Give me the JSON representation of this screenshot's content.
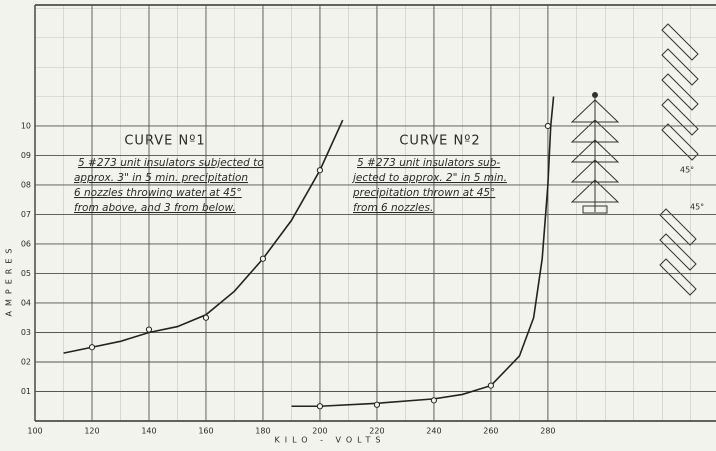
{
  "chart_data": {
    "type": "line",
    "x_label": "KILO - VOLTS",
    "y_label": "AMPERES",
    "xlim": [
      100,
      339
    ],
    "ylim": [
      0,
      1.41
    ],
    "xticks": [
      100,
      120,
      140,
      160,
      180,
      200,
      220,
      240,
      260,
      280
    ],
    "yticks": [
      {
        "value": 0.1,
        "label": "01"
      },
      {
        "value": 0.2,
        "label": "02"
      },
      {
        "value": 0.3,
        "label": "03"
      },
      {
        "value": 0.4,
        "label": "04"
      },
      {
        "value": 0.5,
        "label": "05"
      },
      {
        "value": 0.6,
        "label": "06"
      },
      {
        "value": 0.7,
        "label": "07"
      },
      {
        "value": 0.8,
        "label": "08"
      },
      {
        "value": 0.9,
        "label": "09"
      },
      {
        "value": 1.0,
        "label": "10"
      }
    ],
    "grid": true,
    "series": [
      {
        "name": "CURVE Nº1",
        "color": "#222222",
        "x": [
          110,
          120,
          130,
          140,
          150,
          160,
          170,
          180,
          190,
          200,
          208
        ],
        "values": [
          0.23,
          0.25,
          0.27,
          0.3,
          0.32,
          0.36,
          0.44,
          0.55,
          0.68,
          0.85,
          1.02
        ],
        "observed_x": [
          120,
          140,
          160,
          180,
          200
        ],
        "observed_values": [
          0.25,
          0.31,
          0.35,
          0.55,
          0.85
        ]
      },
      {
        "name": "CURVE Nº2",
        "color": "#222222",
        "x": [
          190,
          200,
          220,
          240,
          250,
          260,
          270,
          275,
          278,
          280,
          281,
          282
        ],
        "values": [
          0.05,
          0.05,
          0.06,
          0.075,
          0.09,
          0.12,
          0.22,
          0.35,
          0.55,
          0.8,
          1.0,
          1.1
        ],
        "observed_x": [
          200,
          220,
          240,
          260,
          280
        ],
        "observed_values": [
          0.05,
          0.055,
          0.07,
          0.12,
          1.0
        ]
      }
    ],
    "annotations": [
      {
        "lines": [
          "5 #273 unit insulators subjected to",
          "approx. 3\" in 5 min. precipitation",
          "6 nozzles throwing water at 45°",
          "from above, and 3 from below."
        ]
      },
      {
        "lines": [
          "5 #273 unit insulators sub-",
          "jected to approx. 2\" in 5 min.",
          "precipitation thrown at 45°",
          "from 6 nozzles."
        ]
      }
    ],
    "side_labels": [
      "45°",
      "45°"
    ]
  }
}
